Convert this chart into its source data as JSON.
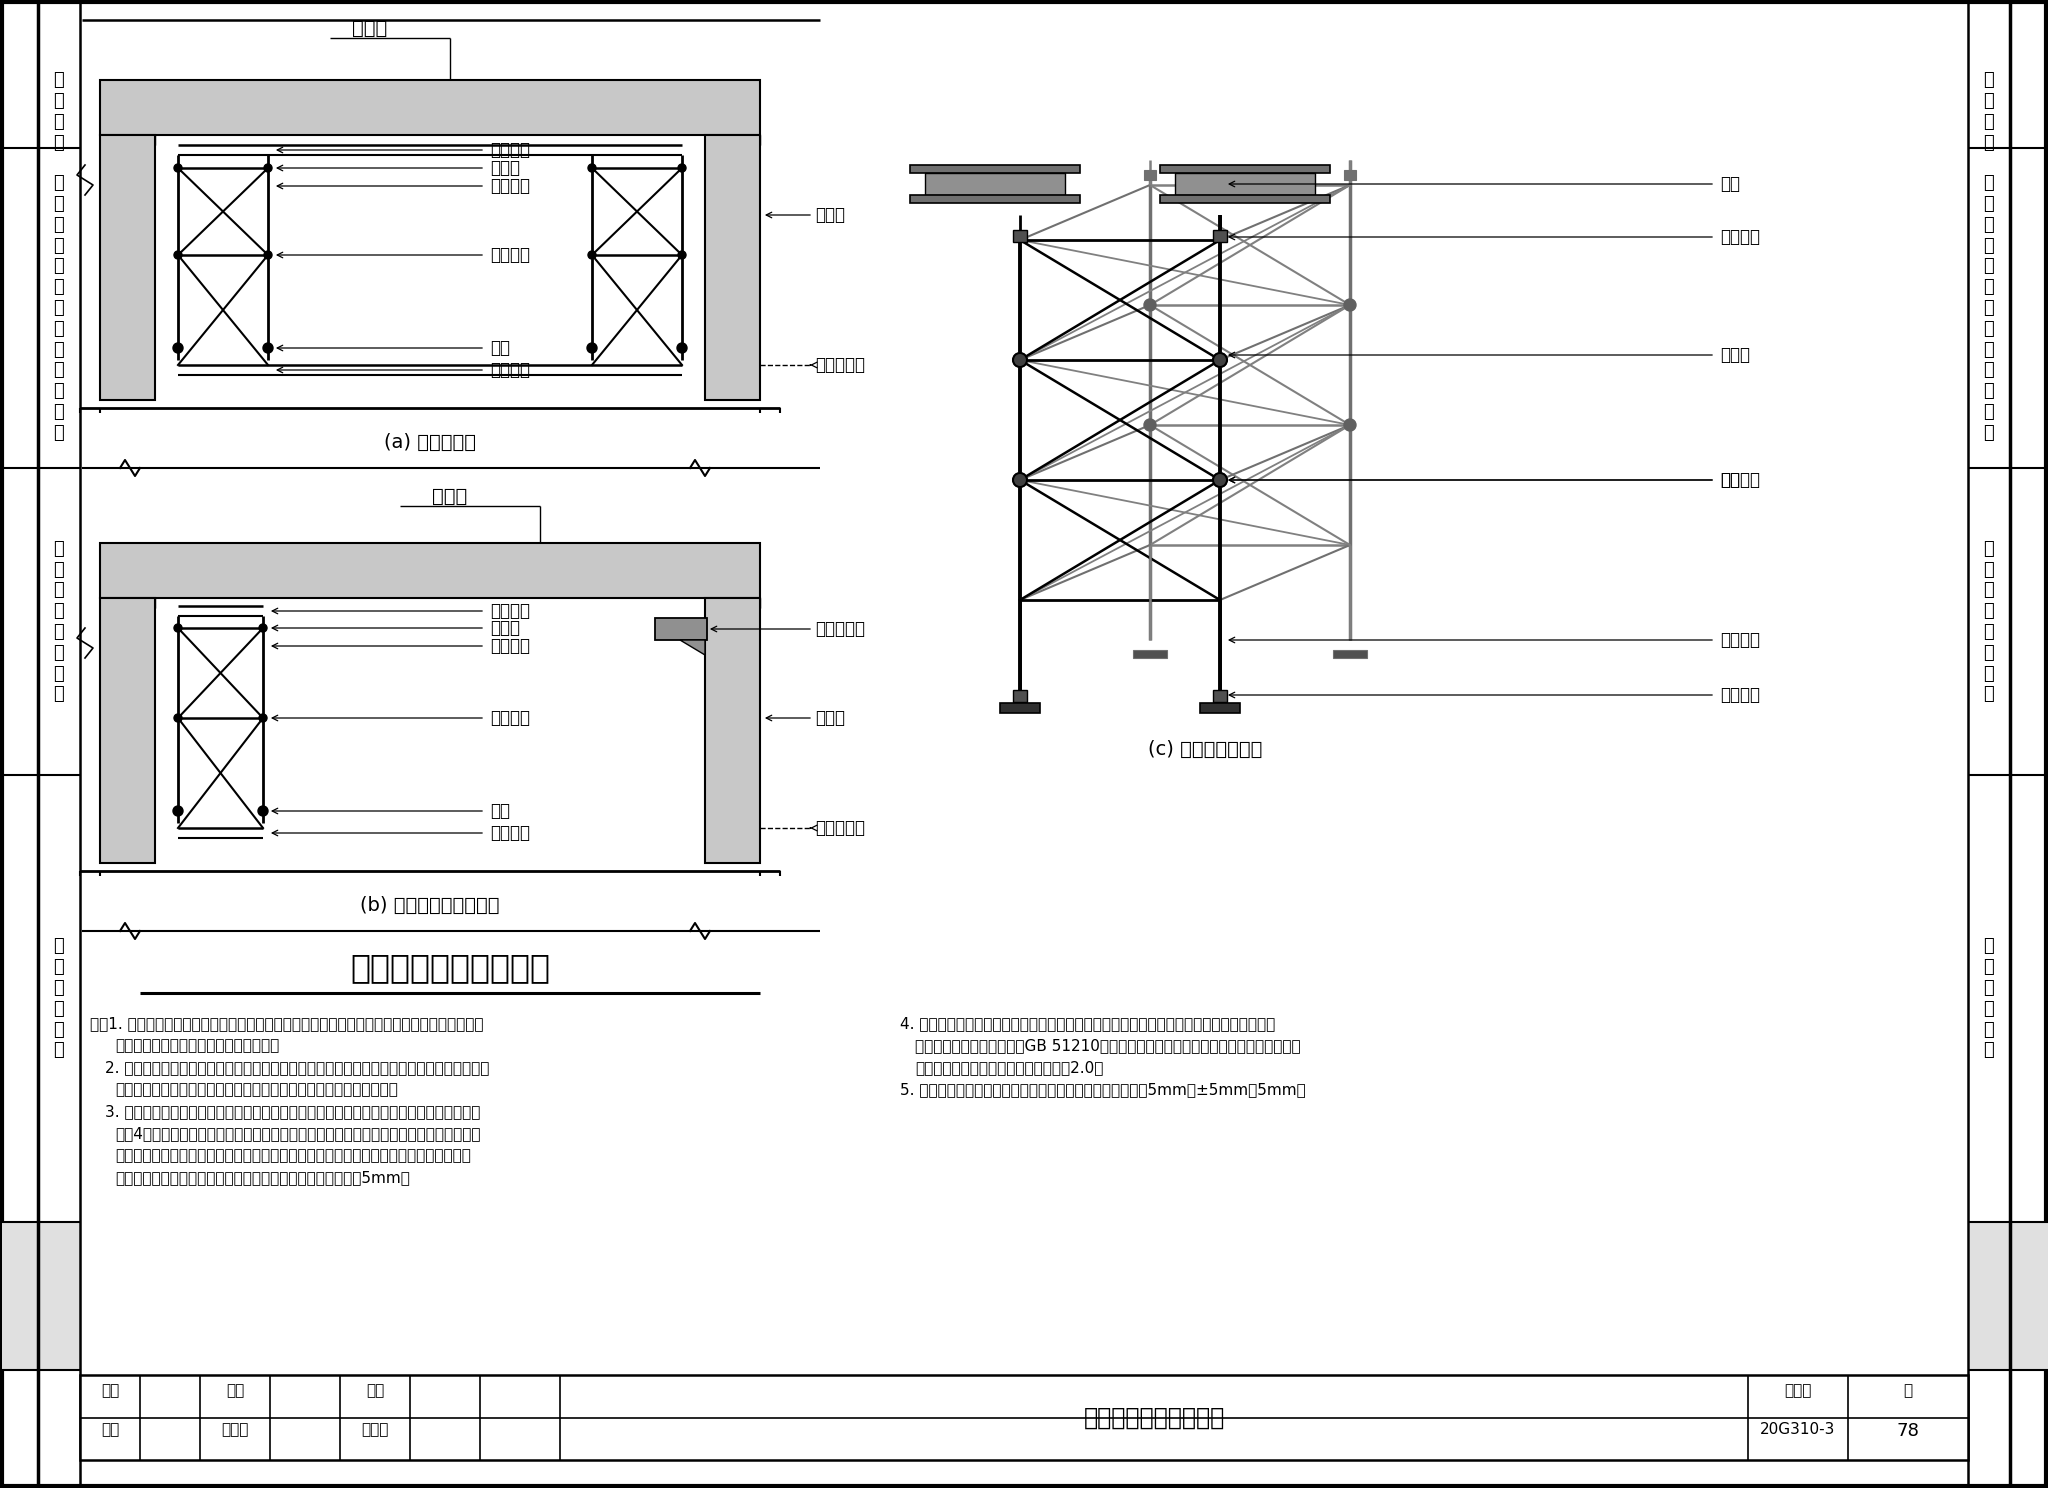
{
  "title": "预制梁临时固定措施二",
  "atlas_num": "20G310-3",
  "page_num": "78",
  "diagram_a_title": "(a) 采用支撑架",
  "diagram_b_title": "(b) 采用支撑架和钢牛腿",
  "diagram_c_title": "(c) 支撑架三维示意",
  "main_title": "预制梁临时固定措施二",
  "left_sidebar": [
    "一般构造",
    "预制梁、预制柱\n和节点区构造",
    "框架连接节点构造",
    "施工技术措施"
  ],
  "right_sidebar": [
    "一般构造",
    "预制梁、预制柱\n和节点区构造",
    "框架连接节点构造",
    "施工技术措施"
  ],
  "gray_fill": "#c8c8c8",
  "light_gray": "#e8e8e8",
  "dark_gray": "#707070",
  "scaffold_gray": "#909090",
  "note1": "注：1. 本图适用于预制梁临时固定措施采用支撑架或支撑架和临时钢牛腿的情况。当有可靠经验",
  "note1b": "    时，也可采用其他的临时固定措施做法。",
  "note2": "2. 预制梁安装过程中应根据水准点和测量线校正位置，就位后及时采取临时固定措施。临时固",
  "note2b": "   定措施的拆除应在相应装配式框架结构达到后续施工承载要求后进行。",
  "note3": "3. 根据预制梁及施工荷载等条件设置跨间临时支撑架。选用单元式支撑架时，支撑架立杆不少",
  "note3b": "   于4支；立杆之间需设水平撑杆及斜撑杆，以保证支撑架的整体稳固性。支撑架立杆上、下",
  "note3c": "   均设可调节杆，以调整支撑高程。支撑架顶设置型钢托梁，预制梁安装时搁置于托梁顶面，",
  "note3d": "   托梁应具备足够的强度与刚度，托梁型钢板材壁厚不小于5mm。",
  "note4": "4. 支撑架应具备竖向及水平向承载能力、稳定承载能力，并应满足现行国家标准《建筑施工脚",
  "note4b": "   手架安全技术统一标准》GB 51210相关设计要求，支撑架进场时，宜提供承载力试验报告。",
  "note4c": "   支撑架的施工安全系数不应小于2.0。",
  "note5": "5. 预制梁的倾斜度、标高和中心线对轴线的允许偏差分别为5mm、±5mm和5mm。"
}
